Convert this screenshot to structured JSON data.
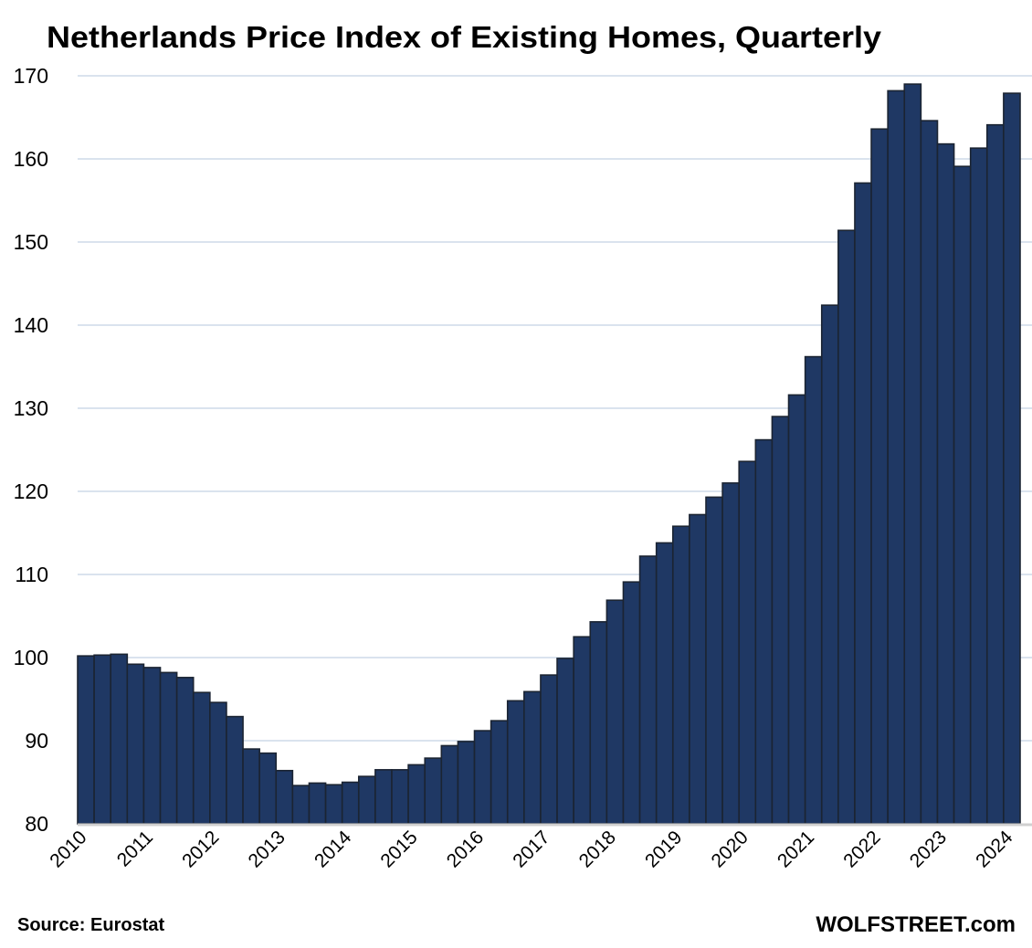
{
  "chart_data": {
    "type": "bar",
    "title": "Netherlands Price Index of Existing Homes, Quarterly",
    "xlabel": "",
    "ylabel": "",
    "ylim": [
      80,
      170
    ],
    "yticks": [
      "80",
      "90",
      "100",
      "110",
      "120",
      "130",
      "140",
      "150",
      "160",
      "170"
    ],
    "grid": true,
    "legend": "none",
    "xtick_labels": [
      "2010",
      "2011",
      "2012",
      "2013",
      "2014",
      "2015",
      "2016",
      "2017",
      "2018",
      "2019",
      "2020",
      "2021",
      "2022",
      "2023",
      "2024"
    ],
    "categories": [
      "2010 Q1",
      "2010 Q2",
      "2010 Q3",
      "2010 Q4",
      "2011 Q1",
      "2011 Q2",
      "2011 Q3",
      "2011 Q4",
      "2012 Q1",
      "2012 Q2",
      "2012 Q3",
      "2012 Q4",
      "2013 Q1",
      "2013 Q2",
      "2013 Q3",
      "2013 Q4",
      "2014 Q1",
      "2014 Q2",
      "2014 Q3",
      "2014 Q4",
      "2015 Q1",
      "2015 Q2",
      "2015 Q3",
      "2015 Q4",
      "2016 Q1",
      "2016 Q2",
      "2016 Q3",
      "2016 Q4",
      "2017 Q1",
      "2017 Q2",
      "2017 Q3",
      "2017 Q4",
      "2018 Q1",
      "2018 Q2",
      "2018 Q3",
      "2018 Q4",
      "2019 Q1",
      "2019 Q2",
      "2019 Q3",
      "2019 Q4",
      "2020 Q1",
      "2020 Q2",
      "2020 Q3",
      "2020 Q4",
      "2021 Q1",
      "2021 Q2",
      "2021 Q3",
      "2021 Q4",
      "2022 Q1",
      "2022 Q2",
      "2022 Q3",
      "2022 Q4",
      "2023 Q1",
      "2023 Q2",
      "2023 Q3",
      "2023 Q4",
      "2024 Q1"
    ],
    "series": [
      {
        "name": "Price Index of Existing Homes",
        "color": "#1f3864",
        "values": [
          100.2,
          100.3,
          100.4,
          99.2,
          98.8,
          98.2,
          97.6,
          95.8,
          94.6,
          92.9,
          89.0,
          88.5,
          86.4,
          84.6,
          84.9,
          84.7,
          85.0,
          85.7,
          86.5,
          86.5,
          87.1,
          87.9,
          89.4,
          89.9,
          91.2,
          92.4,
          94.8,
          95.9,
          97.9,
          99.9,
          102.5,
          104.3,
          106.9,
          109.1,
          112.2,
          113.8,
          115.8,
          117.2,
          119.3,
          121.0,
          123.6,
          126.2,
          129.0,
          131.6,
          136.2,
          142.4,
          151.4,
          157.1,
          163.6,
          168.2,
          169.0,
          164.6,
          161.8,
          159.1,
          161.3,
          164.1,
          167.9
        ]
      }
    ],
    "source": "Source: Eurostat",
    "brand": "WOLFSTREET.com"
  }
}
